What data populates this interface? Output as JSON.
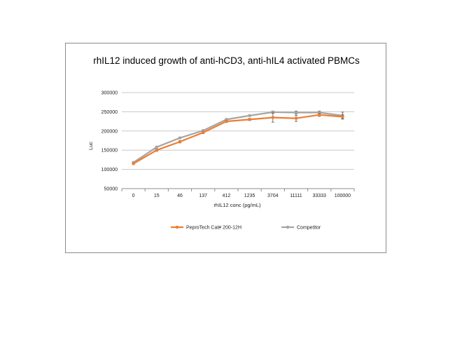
{
  "chart_data": {
    "type": "line",
    "title": "rhIL12 induced growth of anti-hCD3, anti-hIL4 activated PBMCs",
    "xlabel": "rhIL12 conc (pg/mL)",
    "ylabel": "Luc",
    "categories": [
      "0",
      "15",
      "46",
      "137",
      "412",
      "1235",
      "3704",
      "11111",
      "33333",
      "100000"
    ],
    "ylim": [
      50000,
      300000
    ],
    "yticks": [
      "50000",
      "100000",
      "150000",
      "200000",
      "250000",
      "300000"
    ],
    "grid": true,
    "legend_position": "bottom",
    "series": [
      {
        "name": "PeproTech Cat# 200-12H",
        "color": "#ed7d31",
        "values": [
          115000,
          150000,
          172000,
          196000,
          225000,
          230000,
          235000,
          233000,
          242000,
          237000
        ],
        "errors": [
          2000,
          3000,
          3000,
          3000,
          3000,
          3000,
          12000,
          8000,
          4000,
          5000
        ]
      },
      {
        "name": "Competitor",
        "color": "#a5a5a5",
        "values": [
          118000,
          158000,
          182000,
          201000,
          230000,
          240000,
          249000,
          248000,
          248000,
          240000
        ],
        "errors": [
          2000,
          2000,
          2000,
          2000,
          2000,
          2000,
          3000,
          4000,
          4000,
          9000
        ]
      }
    ]
  }
}
